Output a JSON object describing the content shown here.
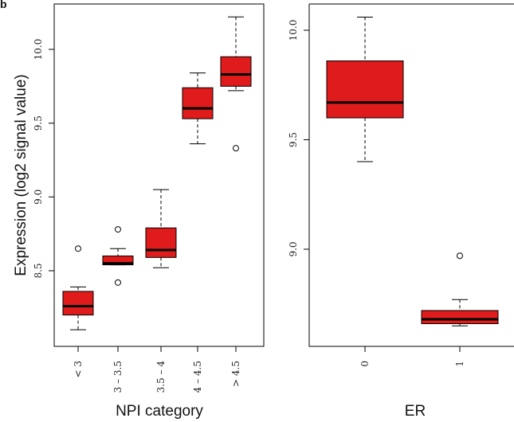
{
  "panel_letter": "b",
  "chart_data": [
    {
      "type": "box",
      "ylabel": "Expression  (log2 signal value)",
      "xlabel": "NPI category",
      "ylim": [
        8.05,
        10.3
      ],
      "yticks": [
        "8.5",
        "9.0",
        "9.5",
        "10.0"
      ],
      "ytick_values": [
        8.5,
        9.0,
        9.5,
        10.0
      ],
      "categories": [
        "< 3",
        "3 – 3.5",
        "3.5 – 4",
        "4 – 4.5",
        "> 4.5"
      ],
      "boxes": [
        {
          "min": 8.1,
          "q1": 8.2,
          "median": 8.26,
          "q3": 8.36,
          "max": 8.39,
          "outliers": [
            8.65
          ]
        },
        {
          "min": 8.54,
          "q1": 8.54,
          "median": 8.55,
          "q3": 8.6,
          "max": 8.65,
          "outliers": [
            8.78,
            8.42
          ]
        },
        {
          "min": 8.52,
          "q1": 8.59,
          "median": 8.64,
          "q3": 8.79,
          "max": 9.05,
          "outliers": []
        },
        {
          "min": 9.36,
          "q1": 9.53,
          "median": 9.6,
          "q3": 9.74,
          "max": 9.84,
          "outliers": []
        },
        {
          "min": 9.72,
          "q1": 9.75,
          "median": 9.83,
          "q3": 9.95,
          "max": 10.22,
          "outliers": [
            9.33
          ]
        }
      ],
      "box_color": "#e01b1b"
    },
    {
      "type": "box",
      "xlabel": "ER",
      "ylim": [
        8.6,
        10.1
      ],
      "yticks": [
        "9.0",
        "9.5",
        "10.0"
      ],
      "ytick_values": [
        9.0,
        9.5,
        10.0
      ],
      "categories": [
        "0",
        "1"
      ],
      "boxes": [
        {
          "min": 9.4,
          "q1": 9.6,
          "median": 9.67,
          "q3": 9.86,
          "max": 10.06,
          "outliers": []
        },
        {
          "min": 8.65,
          "q1": 8.66,
          "median": 8.68,
          "q3": 8.72,
          "max": 8.77,
          "outliers": [
            8.97
          ]
        }
      ],
      "box_color": "#e01b1b"
    }
  ]
}
